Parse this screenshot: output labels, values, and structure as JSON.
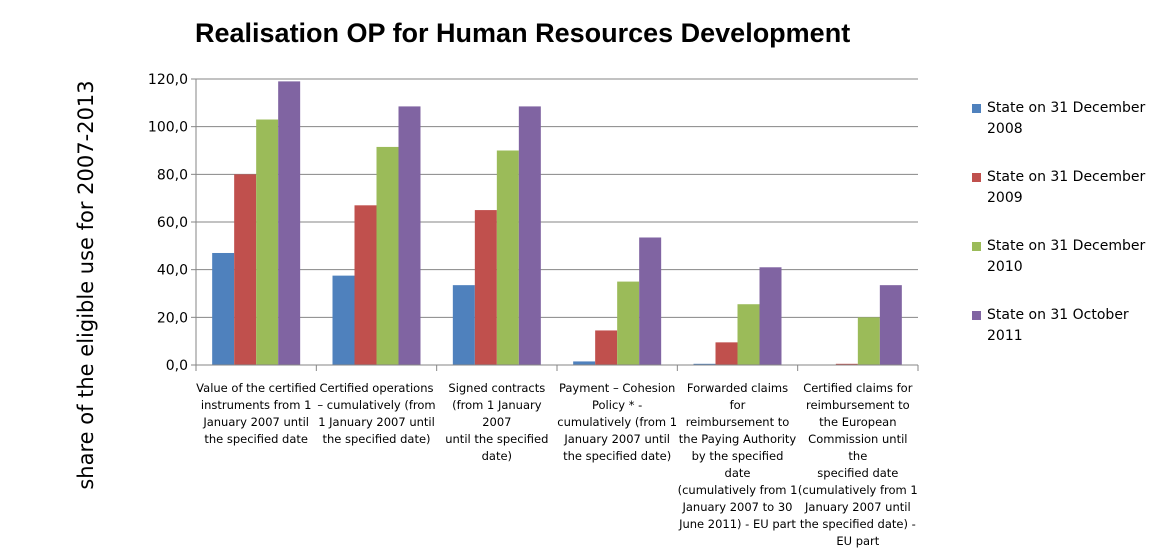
{
  "chart_data": {
    "type": "bar",
    "title": "Realisation OP for Human Resources Development",
    "ylabel": "share of the eligible use for 2007-2013",
    "xlabel": "",
    "ylim": [
      0,
      120
    ],
    "ytick_step": 20,
    "ytick_labels": [
      "0,0",
      "20,0",
      "40,0",
      "60,0",
      "80,0",
      "100,0",
      "120,0"
    ],
    "grid": true,
    "legend_position": "right",
    "categories": [
      "Value of the certified instruments from 1 January 2007 until the specified date",
      "Certified operations – cumulatively (from 1 January 2007 until the specified date)",
      "Signed contracts (from 1 January 2007 until the specified date)",
      "Payment – Cohesion Policy * - cumulatively (from 1 January 2007 until the specified date)",
      "Forwarded claims for reimbursement to the Paying Authority by the specified date (cumulatively from 1 January 2007 to 30 June 2011) - EU part",
      "Certified claims for reimbursement to the European Commission until the specified date (cumulatively from 1 January 2007 until the specified date) - EU part"
    ],
    "category_lines": [
      [
        "Value of the certified",
        "instruments from 1",
        "January 2007 until",
        "the specified date"
      ],
      [
        "Certified operations",
        "– cumulatively (from",
        "1 January 2007 until",
        "the specified date)"
      ],
      [
        "Signed contracts",
        "(from 1 January 2007",
        "until the specified",
        "date)"
      ],
      [
        "Payment – Cohesion",
        "Policy * -",
        "cumulatively (from 1",
        "January 2007 until",
        "the specified date)"
      ],
      [
        "Forwarded claims for",
        "reimbursement to",
        "the Paying Authority",
        "by the specified date",
        "(cumulatively from 1",
        "January 2007 to 30",
        "June 2011) - EU part"
      ],
      [
        "Certified claims for",
        "reimbursement to",
        "the European",
        "Commission until the",
        "specified date",
        "(cumulatively from 1",
        "January 2007 until",
        "the specified date) -",
        "EU part"
      ]
    ],
    "series": [
      {
        "name": "State on 31 December 2008",
        "color": "#4f81bd",
        "values": [
          47.0,
          37.5,
          33.5,
          1.5,
          0.5,
          0.0
        ]
      },
      {
        "name": "State on 31 December 2009",
        "color": "#c0504d",
        "values": [
          80.0,
          67.0,
          65.0,
          14.5,
          9.5,
          0.5
        ]
      },
      {
        "name": "State on 31 December 2010",
        "color": "#9bbb59",
        "values": [
          103.0,
          91.5,
          90.0,
          35.0,
          25.5,
          20.0
        ]
      },
      {
        "name": "State on 31 October 2011",
        "color": "#8064a2",
        "values": [
          119.0,
          108.5,
          108.5,
          53.5,
          41.0,
          33.5
        ]
      }
    ]
  }
}
